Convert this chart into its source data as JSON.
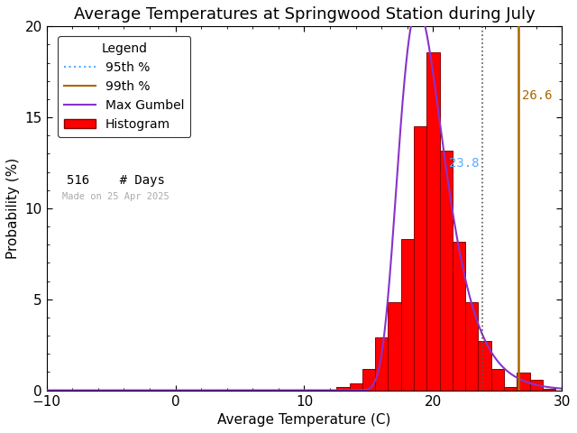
{
  "title": "Average Temperatures at Springwood Station during July",
  "xlabel": "Average Temperature (C)",
  "ylabel": "Probability (%)",
  "xlim": [
    -10,
    30
  ],
  "ylim": [
    0,
    20
  ],
  "yticks": [
    0,
    5,
    10,
    15,
    20
  ],
  "xticks": [
    -10,
    0,
    10,
    20,
    30
  ],
  "bg_color": "white",
  "n_days": 516,
  "percentile_95": 23.8,
  "percentile_99": 26.6,
  "percentile_95_color": "#5555ff",
  "percentile_95_label_color": "#55aaff",
  "percentile_99_color": "#aa6600",
  "gumbel_color": "#8833cc",
  "hist_color": "#ff0000",
  "hist_edge_color": "#880000",
  "date_text": "Made on 25 Apr 2025",
  "legend_title": "Legend",
  "bar_edges": [
    12.5,
    13.5,
    14.5,
    15.5,
    16.5,
    17.5,
    18.5,
    19.5,
    20.5,
    21.5,
    22.5,
    23.5,
    24.5,
    25.5,
    26.5,
    27.5,
    28.5
  ],
  "bar_heights": [
    0.19,
    0.39,
    1.16,
    2.91,
    4.84,
    8.33,
    14.53,
    18.6,
    13.18,
    8.14,
    4.84,
    2.71,
    1.16,
    0.19,
    0.97,
    0.58,
    0.1
  ],
  "gumbel_mu": 18.8,
  "gumbel_beta": 1.75,
  "title_fontsize": 13,
  "axis_fontsize": 11,
  "tick_fontsize": 11,
  "legend_fontsize": 10,
  "annotation_fontsize": 10
}
